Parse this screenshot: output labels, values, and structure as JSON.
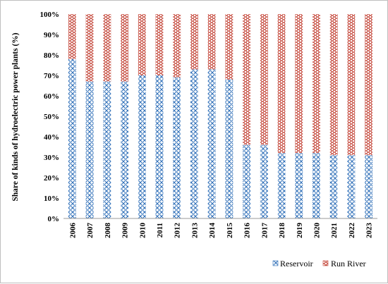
{
  "chart_data": {
    "type": "bar",
    "stacked": true,
    "percent_stacked": true,
    "title": "",
    "xlabel": "",
    "ylabel": "Share of  kinds of hydroelectric power plants  (%)",
    "ylim": [
      0,
      100
    ],
    "y_ticks": [
      "0%",
      "10%",
      "20%",
      "30%",
      "40%",
      "50%",
      "60%",
      "70%",
      "80%",
      "90%",
      "100%"
    ],
    "categories": [
      "2006",
      "2007",
      "2008",
      "2009",
      "2010",
      "2011",
      "2012",
      "2013",
      "2014",
      "2015",
      "2016",
      "2017",
      "2018",
      "2019",
      "2020",
      "2021",
      "2022",
      "2023"
    ],
    "series": [
      {
        "name": "Reservoir",
        "color": "#2f6fb8",
        "pattern": "woven-hatch",
        "values": [
          78,
          67,
          67,
          67,
          70,
          70,
          69,
          73,
          73,
          68,
          36,
          36,
          32,
          32,
          32,
          31,
          31,
          31
        ]
      },
      {
        "name": "Run River",
        "color": "#c0392b",
        "pattern": "horizontal-dashes",
        "values": [
          22,
          33,
          33,
          33,
          30,
          30,
          31,
          27,
          27,
          32,
          64,
          64,
          68,
          68,
          68,
          69,
          69,
          69
        ]
      }
    ],
    "legend_position": "bottom-right",
    "grid": false
  }
}
